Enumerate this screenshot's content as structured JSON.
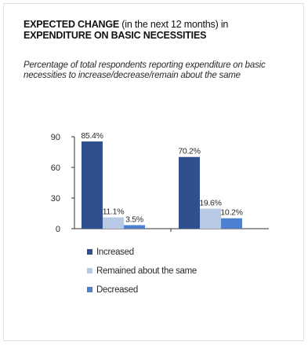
{
  "header": {
    "title_bold_1": "EXPECTED CHANGE",
    "title_normal": " (in the next 12 months) in",
    "title_bold_2": "EXPENDITURE ON BASIC NECESSITIES",
    "subtitle": "Percentage of total respondents reporting expenditure on basic necessities to increase/decrease/remain about the same"
  },
  "chart_data": {
    "type": "bar",
    "categories": [
      "",
      ""
    ],
    "series": [
      {
        "name": "Increased",
        "values": [
          85.4,
          70.2
        ],
        "labels": [
          "85.4%",
          "70.2%"
        ],
        "color": "#2f4f8f"
      },
      {
        "name": "Remained about the same",
        "values": [
          11.1,
          19.6
        ],
        "labels": [
          "11.1%",
          "19.6%"
        ],
        "color": "#b8c9e6"
      },
      {
        "name": "Decreased",
        "values": [
          3.5,
          10.2
        ],
        "labels": [
          "3.5%",
          "10.2%"
        ],
        "color": "#4f7fcf"
      }
    ],
    "ylim": [
      0,
      90
    ],
    "yticks": [
      0,
      30,
      60,
      90
    ],
    "grid": false,
    "legend_position": "bottom"
  }
}
